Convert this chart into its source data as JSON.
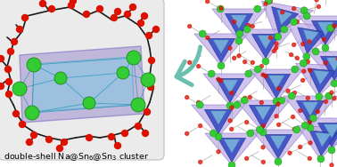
{
  "figure_bg": "#ffffff",
  "figsize": [
    3.78,
    1.88
  ],
  "dpi": 100,
  "left_bg_color": "#ebebeb",
  "left_border_color": "#c8c8c8",
  "outer_box": {
    "fc": "#9b8ecf",
    "ec": "#7a65c0",
    "alpha": 0.55
  },
  "inner_box": {
    "fc": "#7ec8e3",
    "ec": "#4499bb",
    "alpha": 0.5
  },
  "green_color": "#33cc33",
  "green_ec": "#1a8a1a",
  "stick_color": "#1a1a1a",
  "red_color": "#dd1100",
  "arrow_color": "#6abfb0",
  "right_bg": "#ffffff",
  "blue_tri_color": "#3b4ec5",
  "blue_tri_ec": "#1a2a88",
  "purple_tri_color": "#c0aee8",
  "purple_tri_ec": "#8a70c0",
  "cyan_tri_color": "#88cce0",
  "cyan_tri_ec": "#4499aa",
  "caption_fontsize": 6.8,
  "caption_color": "#000000"
}
